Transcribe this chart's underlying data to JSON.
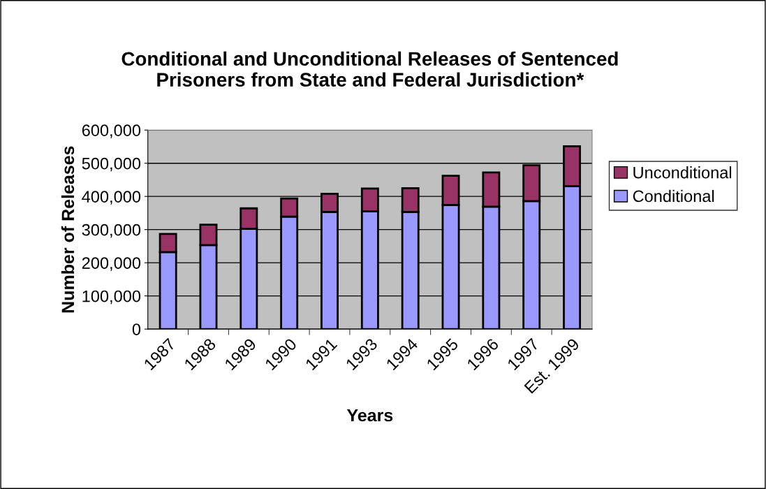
{
  "chart_data": {
    "type": "bar",
    "stacked": true,
    "title": "Conditional and Unconditional Releases of Sentenced\nPrisoners from State and Federal Jurisdiction*",
    "xlabel": "Years",
    "ylabel": "Number of Releases",
    "categories": [
      "1987",
      "1988",
      "1989",
      "1990",
      "1991",
      "1993",
      "1994",
      "1995",
      "1996",
      "1997",
      "Est. 1999"
    ],
    "series": [
      {
        "name": "Conditional",
        "color": "#9999ff",
        "values": [
          232000,
          253000,
          302000,
          339000,
          353000,
          355000,
          353000,
          374000,
          369000,
          386000,
          431000
        ]
      },
      {
        "name": "Unconditional",
        "color": "#993366",
        "values": [
          55000,
          62000,
          62000,
          55000,
          55000,
          69000,
          72000,
          88000,
          103000,
          108000,
          120000
        ]
      }
    ],
    "ylim": [
      0,
      600000
    ],
    "yticks": [
      {
        "value": 0,
        "label": "0"
      },
      {
        "value": 100000,
        "label": "100,000"
      },
      {
        "value": 200000,
        "label": "200,000"
      },
      {
        "value": 300000,
        "label": "300,000"
      },
      {
        "value": 400000,
        "label": "400,000"
      },
      {
        "value": 500000,
        "label": "500,000"
      },
      {
        "value": 600000,
        "label": "600,000"
      }
    ],
    "grid": "y",
    "legend": "right"
  }
}
